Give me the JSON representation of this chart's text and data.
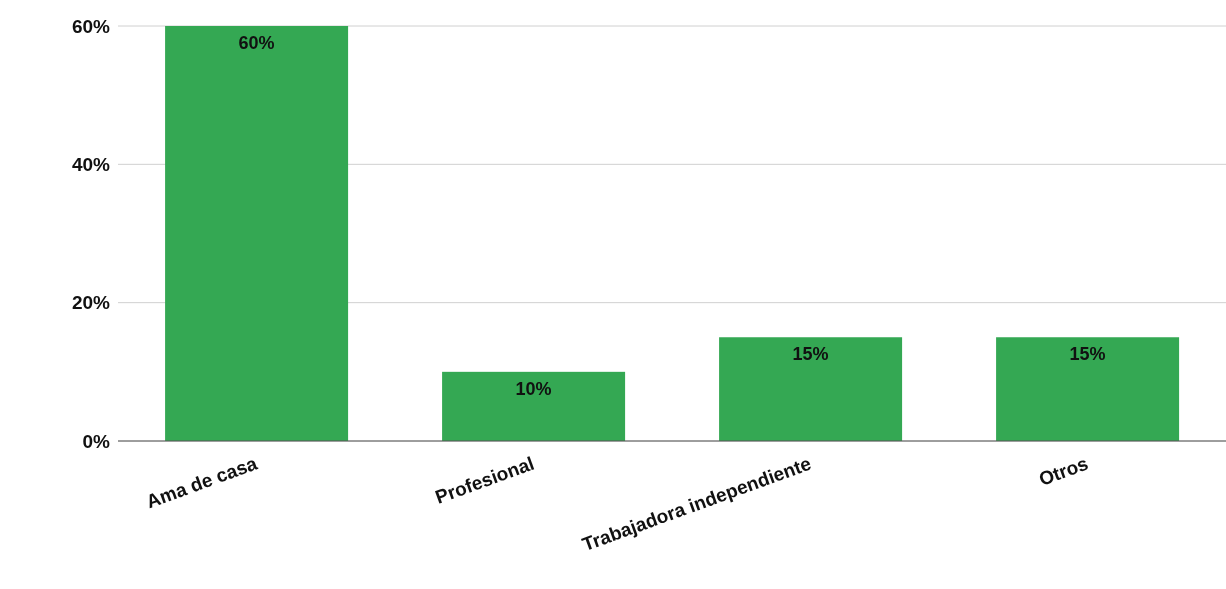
{
  "chart_data": {
    "type": "bar",
    "categories": [
      "Ama de casa",
      "Profesional",
      "Trabajadora independiente",
      "Otros"
    ],
    "values": [
      60,
      10,
      15,
      15
    ],
    "value_labels": [
      "60%",
      "10%",
      "15%",
      "15%"
    ],
    "color": "#34a853",
    "ylim": [
      0,
      60
    ],
    "yticks": [
      {
        "value": 0,
        "label": "0%"
      },
      {
        "value": 20,
        "label": "20%"
      },
      {
        "value": 40,
        "label": "40%"
      },
      {
        "value": 60,
        "label": "60%"
      }
    ],
    "grid": "y"
  }
}
